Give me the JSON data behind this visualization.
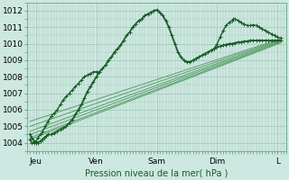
{
  "bg_color": "#cce8e0",
  "plot_bg": "#cce8e0",
  "grid_color": "#a8c8be",
  "line_dark": "#1a5c28",
  "line_med": "#2d7a3a",
  "line_light": "#5a9e6a",
  "ylabel": "Pression niveau de la mer( hPa )",
  "xlim": [
    0.0,
    4.3
  ],
  "ylim": [
    1003.5,
    1012.5
  ],
  "yticks": [
    1004,
    1005,
    1006,
    1007,
    1008,
    1009,
    1010,
    1011,
    1012
  ],
  "xtick_labels": [
    "Jeu",
    "Ven",
    "Sam",
    "Dim",
    "L"
  ],
  "xtick_positions": [
    0.15,
    1.15,
    2.15,
    3.15,
    4.15
  ],
  "main_curve": {
    "x": [
      0.05,
      0.08,
      0.12,
      0.15,
      0.18,
      0.22,
      0.25,
      0.28,
      0.32,
      0.35,
      0.4,
      0.45,
      0.5,
      0.55,
      0.6,
      0.65,
      0.7,
      0.75,
      0.8,
      0.85,
      0.9,
      0.95,
      1.0,
      1.05,
      1.1,
      1.15,
      1.2,
      1.25,
      1.3,
      1.35,
      1.4,
      1.45,
      1.5,
      1.55,
      1.6,
      1.65,
      1.7,
      1.75,
      1.8,
      1.85,
      1.9,
      1.95,
      2.0,
      2.05,
      2.1,
      2.15,
      2.2,
      2.25,
      2.3,
      2.35,
      2.4,
      2.45,
      2.5,
      2.55,
      2.6,
      2.65,
      2.7,
      2.75,
      2.8,
      2.85,
      2.9,
      2.95,
      3.0,
      3.05,
      3.1,
      3.15,
      3.2,
      3.25,
      3.3,
      3.35,
      3.4,
      3.45,
      3.5,
      3.55,
      3.6,
      3.65,
      3.7,
      3.75,
      3.8,
      3.85,
      3.9,
      3.95,
      4.0,
      4.05,
      4.1,
      4.15,
      4.2
    ],
    "y": [
      1004.5,
      1004.3,
      1004.1,
      1004.0,
      1004.0,
      1004.1,
      1004.2,
      1004.3,
      1004.4,
      1004.5,
      1004.5,
      1004.6,
      1004.7,
      1004.8,
      1004.9,
      1005.0,
      1005.2,
      1005.4,
      1005.7,
      1006.0,
      1006.3,
      1006.7,
      1007.1,
      1007.4,
      1007.7,
      1008.0,
      1008.3,
      1008.5,
      1008.7,
      1009.0,
      1009.2,
      1009.5,
      1009.7,
      1009.9,
      1010.2,
      1010.5,
      1010.7,
      1011.0,
      1011.2,
      1011.4,
      1011.5,
      1011.7,
      1011.8,
      1011.9,
      1012.0,
      1012.05,
      1011.9,
      1011.7,
      1011.4,
      1011.0,
      1010.5,
      1010.0,
      1009.5,
      1009.2,
      1009.0,
      1008.9,
      1008.9,
      1009.0,
      1009.1,
      1009.2,
      1009.3,
      1009.4,
      1009.5,
      1009.6,
      1009.7,
      1009.8,
      1009.85,
      1009.9,
      1009.95,
      1010.0,
      1010.0,
      1010.05,
      1010.1,
      1010.1,
      1010.15,
      1010.15,
      1010.2,
      1010.2,
      1010.2,
      1010.2,
      1010.2,
      1010.2,
      1010.2,
      1010.2,
      1010.2,
      1010.2,
      1010.2
    ]
  },
  "squiggle_thu_fri": {
    "x": [
      0.05,
      0.08,
      0.12,
      0.15,
      0.18,
      0.22,
      0.26,
      0.3,
      0.35,
      0.4,
      0.45,
      0.5,
      0.55,
      0.6,
      0.65,
      0.7,
      0.75,
      0.8,
      0.85,
      0.9,
      0.95,
      1.0,
      1.05,
      1.1,
      1.15,
      1.2
    ],
    "y": [
      1004.2,
      1004.0,
      1004.0,
      1004.1,
      1004.3,
      1004.5,
      1004.7,
      1005.0,
      1005.3,
      1005.6,
      1005.8,
      1006.0,
      1006.3,
      1006.6,
      1006.8,
      1007.0,
      1007.2,
      1007.4,
      1007.6,
      1007.8,
      1008.0,
      1008.1,
      1008.2,
      1008.3,
      1008.3,
      1008.3
    ]
  },
  "squiggle_dim": {
    "x": [
      3.1,
      3.15,
      3.2,
      3.25,
      3.3,
      3.35,
      3.4,
      3.42,
      3.45,
      3.5,
      3.55,
      3.6,
      3.65,
      3.7,
      3.75,
      3.8,
      3.85,
      3.9,
      3.95,
      4.0,
      4.05,
      4.1,
      4.15,
      4.2
    ],
    "y": [
      1009.7,
      1010.0,
      1010.4,
      1010.8,
      1011.1,
      1011.3,
      1011.4,
      1011.5,
      1011.5,
      1011.4,
      1011.3,
      1011.2,
      1011.1,
      1011.1,
      1011.15,
      1011.1,
      1011.0,
      1010.9,
      1010.8,
      1010.7,
      1010.6,
      1010.5,
      1010.4,
      1010.35
    ]
  },
  "fan_lines": [
    {
      "x0": 0.05,
      "y0": 1004.2,
      "x1": 4.2,
      "y1": 1010.05
    },
    {
      "x0": 0.05,
      "y0": 1004.3,
      "x1": 4.2,
      "y1": 1010.1
    },
    {
      "x0": 0.05,
      "y0": 1004.5,
      "x1": 4.2,
      "y1": 1010.15
    },
    {
      "x0": 0.05,
      "y0": 1004.7,
      "x1": 4.2,
      "y1": 1010.2
    },
    {
      "x0": 0.05,
      "y0": 1005.0,
      "x1": 4.2,
      "y1": 1010.25
    },
    {
      "x0": 0.05,
      "y0": 1005.3,
      "x1": 4.2,
      "y1": 1010.3
    }
  ]
}
